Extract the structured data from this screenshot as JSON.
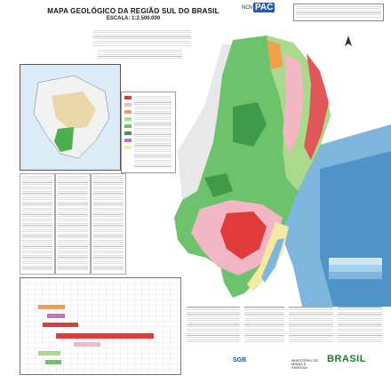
{
  "map": {
    "title": "MAPA GEOLÓGICO DA REGIÃO SUL DO BRASIL",
    "scale": "ESCALA: 1:2.500.000"
  },
  "branding": {
    "novo": "NOVO",
    "pac": "PAC",
    "sgb": "SGB",
    "ministry": "MINISTÉRIO DE MINAS E ENERGIA",
    "government": "BRASIL"
  },
  "colors": {
    "ocean": "#7fb6de",
    "ocean_deep": "#4f93c7",
    "basalt_green": "#6cc36b",
    "light_green": "#a9d98a",
    "sediment_pink": "#f2b6c4",
    "granite_red": "#e03a3a",
    "orange": "#f0a04a",
    "neighbor_gray": "#e6e6e6"
  },
  "icons": {
    "north_arrow": "north-arrow-icon"
  }
}
